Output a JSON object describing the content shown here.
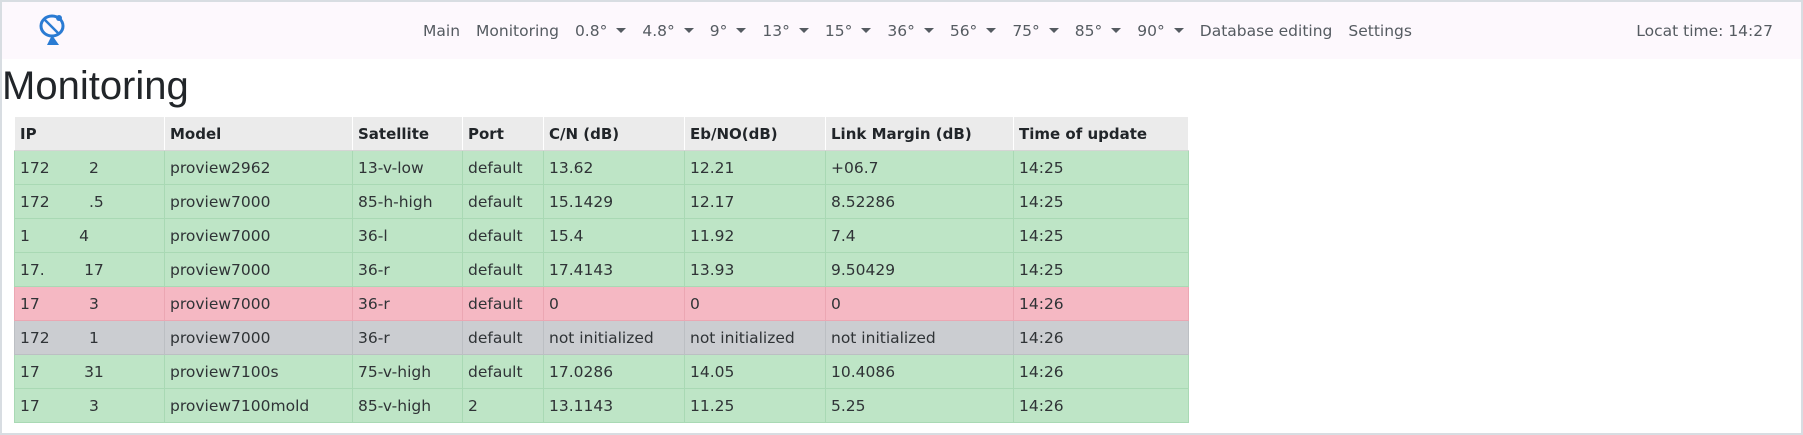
{
  "nav": {
    "items": [
      {
        "label": "Main",
        "dropdown": false
      },
      {
        "label": "Monitoring",
        "dropdown": false
      },
      {
        "label": "0.8°",
        "dropdown": true
      },
      {
        "label": "4.8°",
        "dropdown": true
      },
      {
        "label": "9°",
        "dropdown": true
      },
      {
        "label": "13°",
        "dropdown": true
      },
      {
        "label": "15°",
        "dropdown": true
      },
      {
        "label": "36°",
        "dropdown": true
      },
      {
        "label": "56°",
        "dropdown": true
      },
      {
        "label": "75°",
        "dropdown": true
      },
      {
        "label": "85°",
        "dropdown": true
      },
      {
        "label": "90°",
        "dropdown": true
      },
      {
        "label": "Database editing",
        "dropdown": false
      },
      {
        "label": "Settings",
        "dropdown": false
      }
    ],
    "time_text": "Locat time: 14:27"
  },
  "page_title": "Monitoring",
  "table": {
    "columns": [
      "IP",
      "Model",
      "Satellite",
      "Port",
      "C/N (dB)",
      "Eb/NO(dB)",
      "Link Margin (dB)",
      "Time of update"
    ],
    "rows": [
      {
        "status": "ok",
        "cells": [
          "172        2",
          "proview2962",
          "13-v-low",
          "default",
          "13.62",
          "12.21",
          "+06.7",
          "14:25"
        ]
      },
      {
        "status": "ok",
        "cells": [
          "172        .5",
          "proview7000",
          "85-h-high",
          "default",
          "15.1429",
          "12.17",
          "8.52286",
          "14:25"
        ]
      },
      {
        "status": "ok",
        "cells": [
          "1          4",
          "proview7000",
          "36-l",
          "default",
          "15.4",
          "11.92",
          "7.4",
          "14:25"
        ]
      },
      {
        "status": "ok",
        "cells": [
          "17.        17",
          "proview7000",
          "36-r",
          "default",
          "17.4143",
          "13.93",
          "9.50429",
          "14:25"
        ]
      },
      {
        "status": "bad",
        "cells": [
          "17          3",
          "proview7000",
          "36-r",
          "default",
          "0",
          "0",
          "0",
          "14:26"
        ]
      },
      {
        "status": "na",
        "cells": [
          "172        1",
          "proview7000",
          "36-r",
          "default",
          "not initialized",
          "not initialized",
          "not initialized",
          "14:26"
        ]
      },
      {
        "status": "ok",
        "cells": [
          "17         31",
          "proview7100s",
          "75-v-high",
          "default",
          "17.0286",
          "14.05",
          "10.4086",
          "14:26"
        ]
      },
      {
        "status": "ok",
        "cells": [
          "17          3",
          "proview7100mold",
          "85-v-high",
          "2",
          "13.1143",
          "11.25",
          "5.25",
          "14:26"
        ]
      }
    ]
  },
  "colors": {
    "ok": "#bee5c6",
    "bad": "#f5b8c3",
    "na": "#cbcdd1",
    "header": "#ebebeb",
    "logo": "#2a7bd3"
  },
  "icons": {
    "logo": "satellite-dish-icon",
    "dropdown": "caret-down-icon"
  }
}
